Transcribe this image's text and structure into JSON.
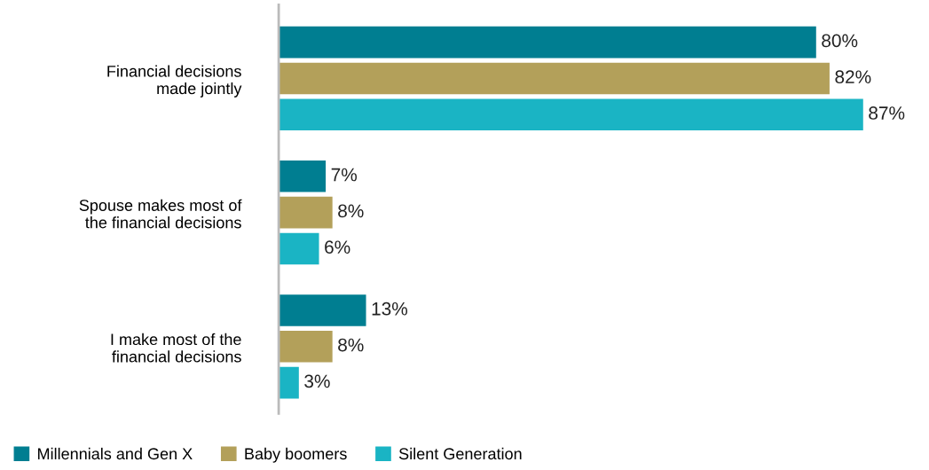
{
  "chart_data": {
    "type": "bar",
    "orientation": "horizontal",
    "categories": [
      "Financial decisions\nmade jointly",
      "Spouse makes most of\nthe financial decisions",
      "I make most of the\nfinancial decisions"
    ],
    "series": [
      {
        "name": "Millennials and Gen X",
        "color": "#007e91",
        "values": [
          80,
          7,
          13
        ],
        "value_labels": [
          "80%",
          "7%",
          "13%"
        ]
      },
      {
        "name": "Baby boomers",
        "color": "#b3a05a",
        "values": [
          82,
          8,
          8
        ],
        "value_labels": [
          "82%",
          "8%",
          "8%"
        ]
      },
      {
        "name": "Silent Generation",
        "color": "#1ab4c4",
        "values": [
          87,
          6,
          3
        ],
        "value_labels": [
          "87%",
          "6%",
          "3%"
        ]
      }
    ],
    "legend": "bottom left"
  }
}
